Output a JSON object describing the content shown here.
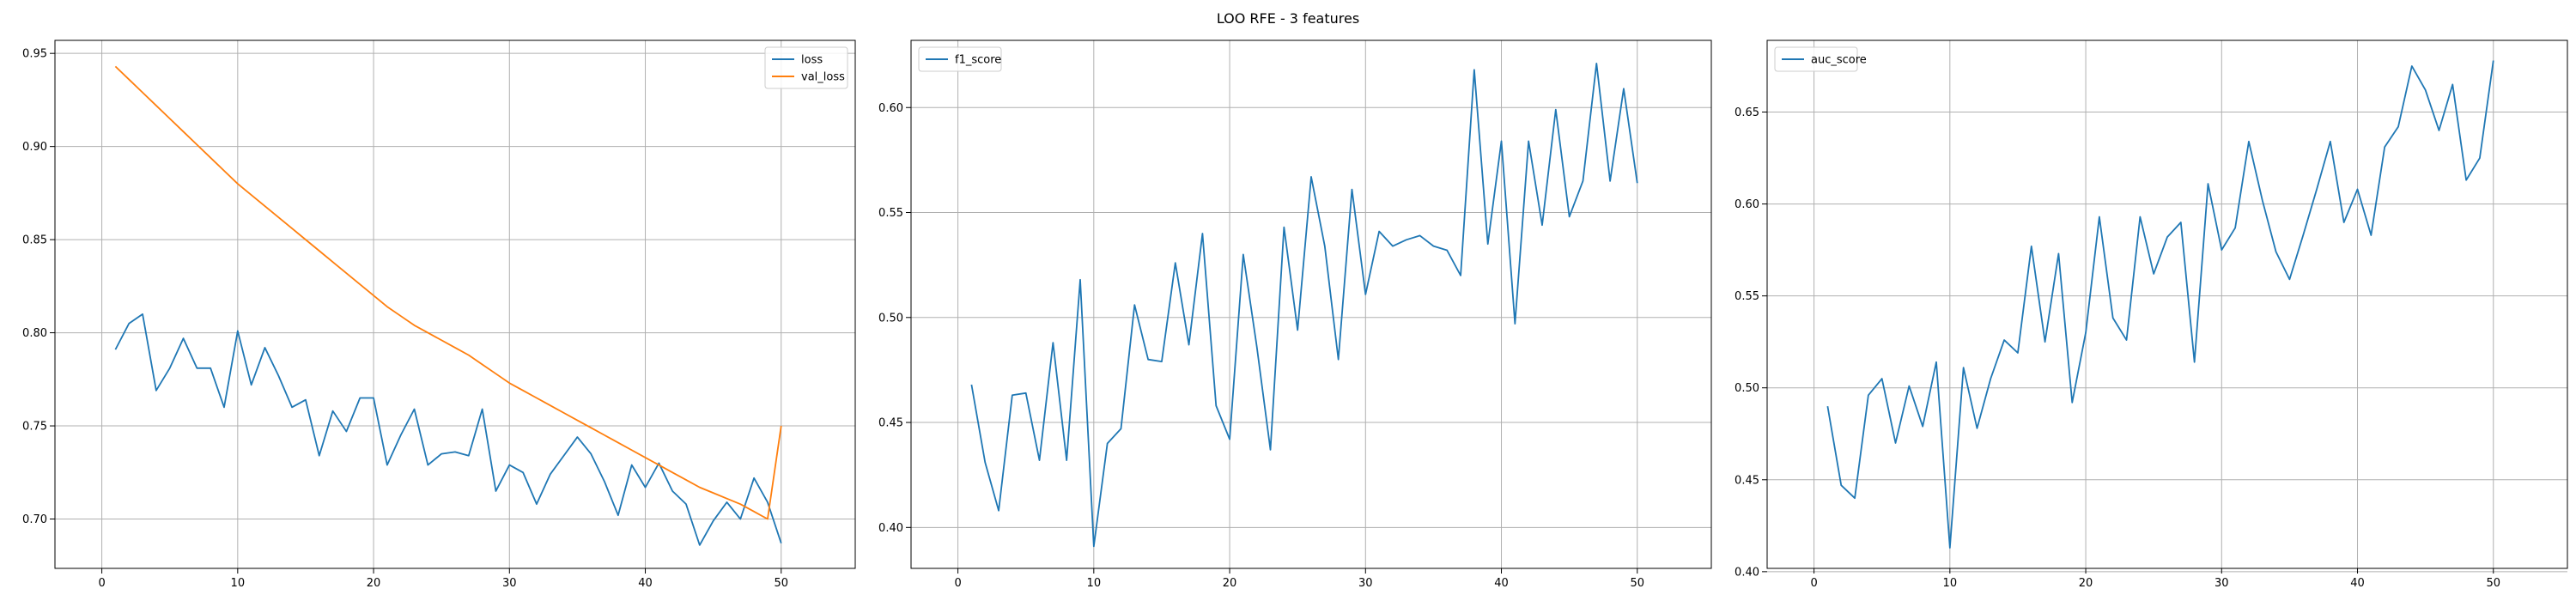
{
  "figure": {
    "title": "LOO RFE - 3 features"
  },
  "chart_data": [
    {
      "type": "line",
      "title": "",
      "xlabel": "",
      "ylabel": "",
      "xlim": [
        -3.45,
        55.45
      ],
      "ylim": [
        0.6735,
        0.957
      ],
      "grid": true,
      "legend_position": "top-right",
      "x_ticks": [
        0,
        10,
        20,
        30,
        40,
        50
      ],
      "y_ticks": [
        0.7,
        0.75,
        0.8,
        0.85,
        0.9,
        0.95
      ],
      "y_tick_labels": [
        "0.70",
        "0.75",
        "0.80",
        "0.85",
        "0.90",
        "0.95"
      ],
      "x": [
        1,
        2,
        3,
        4,
        5,
        6,
        7,
        8,
        9,
        10,
        11,
        12,
        13,
        14,
        15,
        16,
        17,
        18,
        19,
        20,
        21,
        22,
        23,
        24,
        25,
        26,
        27,
        28,
        29,
        30,
        31,
        32,
        33,
        34,
        35,
        36,
        37,
        38,
        39,
        40,
        41,
        42,
        43,
        44,
        45,
        46,
        47,
        48,
        49,
        50
      ],
      "series": [
        {
          "name": "loss",
          "color": "#1f77b4",
          "values": [
            0.791,
            0.805,
            0.81,
            0.769,
            0.781,
            0.797,
            0.781,
            0.781,
            0.76,
            0.801,
            0.772,
            0.792,
            0.777,
            0.76,
            0.764,
            0.734,
            0.758,
            0.747,
            0.765,
            0.765,
            0.729,
            0.745,
            0.759,
            0.729,
            0.735,
            0.736,
            0.734,
            0.759,
            0.715,
            0.729,
            0.725,
            0.708,
            0.724,
            0.734,
            0.744,
            0.735,
            0.72,
            0.702,
            0.729,
            0.717,
            0.73,
            0.715,
            0.708,
            0.686,
            0.699,
            0.709,
            0.7,
            0.722,
            0.709,
            0.687
          ]
        },
        {
          "name": "val_loss",
          "color": "#ff7f0e",
          "values": [
            0.943,
            0.936,
            0.929,
            0.922,
            0.915,
            0.908,
            0.901,
            0.894,
            0.887,
            0.88,
            0.874,
            0.868,
            0.862,
            0.856,
            0.85,
            0.844,
            0.838,
            0.832,
            0.826,
            0.82,
            0.814,
            0.809,
            0.804,
            0.8,
            0.796,
            0.792,
            0.788,
            0.783,
            0.778,
            0.773,
            0.769,
            0.765,
            0.761,
            0.757,
            0.753,
            0.749,
            0.745,
            0.741,
            0.737,
            0.733,
            0.729,
            0.725,
            0.721,
            0.717,
            0.714,
            0.711,
            0.708,
            0.704,
            0.7,
            0.75
          ]
        }
      ]
    },
    {
      "type": "line",
      "title": "",
      "xlabel": "",
      "ylabel": "",
      "xlim": [
        -3.45,
        55.45
      ],
      "ylim": [
        0.3805,
        0.632
      ],
      "grid": true,
      "legend_position": "top-left",
      "x_ticks": [
        0,
        10,
        20,
        30,
        40,
        50
      ],
      "y_ticks": [
        0.4,
        0.45,
        0.5,
        0.55,
        0.6
      ],
      "y_tick_labels": [
        "0.40",
        "0.45",
        "0.50",
        "0.55",
        "0.60"
      ],
      "x": [
        1,
        2,
        3,
        4,
        5,
        6,
        7,
        8,
        9,
        10,
        11,
        12,
        13,
        14,
        15,
        16,
        17,
        18,
        19,
        20,
        21,
        22,
        23,
        24,
        25,
        26,
        27,
        28,
        29,
        30,
        31,
        32,
        33,
        34,
        35,
        36,
        37,
        38,
        39,
        40,
        41,
        42,
        43,
        44,
        45,
        46,
        47,
        48,
        49,
        50
      ],
      "series": [
        {
          "name": "f1_score",
          "color": "#1f77b4",
          "values": [
            0.468,
            0.431,
            0.408,
            0.463,
            0.464,
            0.432,
            0.488,
            0.432,
            0.518,
            0.391,
            0.44,
            0.447,
            0.506,
            0.48,
            0.479,
            0.526,
            0.487,
            0.54,
            0.458,
            0.442,
            0.53,
            0.486,
            0.437,
            0.543,
            0.494,
            0.567,
            0.534,
            0.48,
            0.561,
            0.511,
            0.541,
            0.534,
            0.537,
            0.539,
            0.534,
            0.532,
            0.52,
            0.618,
            0.535,
            0.584,
            0.497,
            0.584,
            0.544,
            0.599,
            0.548,
            0.565,
            0.621,
            0.565,
            0.609,
            0.564
          ]
        }
      ]
    },
    {
      "type": "line",
      "title": "",
      "xlabel": "",
      "ylabel": "",
      "xlim": [
        -3.45,
        55.45
      ],
      "ylim": [
        0.4018,
        0.689
      ],
      "grid": true,
      "legend_position": "top-left",
      "x_ticks": [
        0,
        10,
        20,
        30,
        40,
        50
      ],
      "y_ticks": [
        0.4,
        0.45,
        0.5,
        0.55,
        0.6,
        0.65
      ],
      "y_tick_labels": [
        "0.40",
        "0.45",
        "0.50",
        "0.55",
        "0.60",
        "0.65"
      ],
      "x": [
        1,
        2,
        3,
        4,
        5,
        6,
        7,
        8,
        9,
        10,
        11,
        12,
        13,
        14,
        15,
        16,
        17,
        18,
        19,
        20,
        21,
        22,
        23,
        24,
        25,
        26,
        27,
        28,
        29,
        30,
        31,
        32,
        33,
        34,
        35,
        36,
        37,
        38,
        39,
        40,
        41,
        42,
        43,
        44,
        45,
        46,
        47,
        48,
        49,
        50
      ],
      "series": [
        {
          "name": "auc_score",
          "color": "#1f77b4",
          "values": [
            0.49,
            0.447,
            0.44,
            0.496,
            0.505,
            0.47,
            0.501,
            0.479,
            0.514,
            0.413,
            0.511,
            0.478,
            0.505,
            0.526,
            0.519,
            0.577,
            0.525,
            0.573,
            0.492,
            0.53,
            0.593,
            0.538,
            0.526,
            0.593,
            0.562,
            0.582,
            0.59,
            0.514,
            0.611,
            0.575,
            0.587,
            0.634,
            0.602,
            0.574,
            0.559,
            0.583,
            0.608,
            0.634,
            0.59,
            0.608,
            0.583,
            0.631,
            0.642,
            0.675,
            0.662,
            0.64,
            0.665,
            0.613,
            0.625,
            0.678
          ]
        }
      ]
    }
  ]
}
